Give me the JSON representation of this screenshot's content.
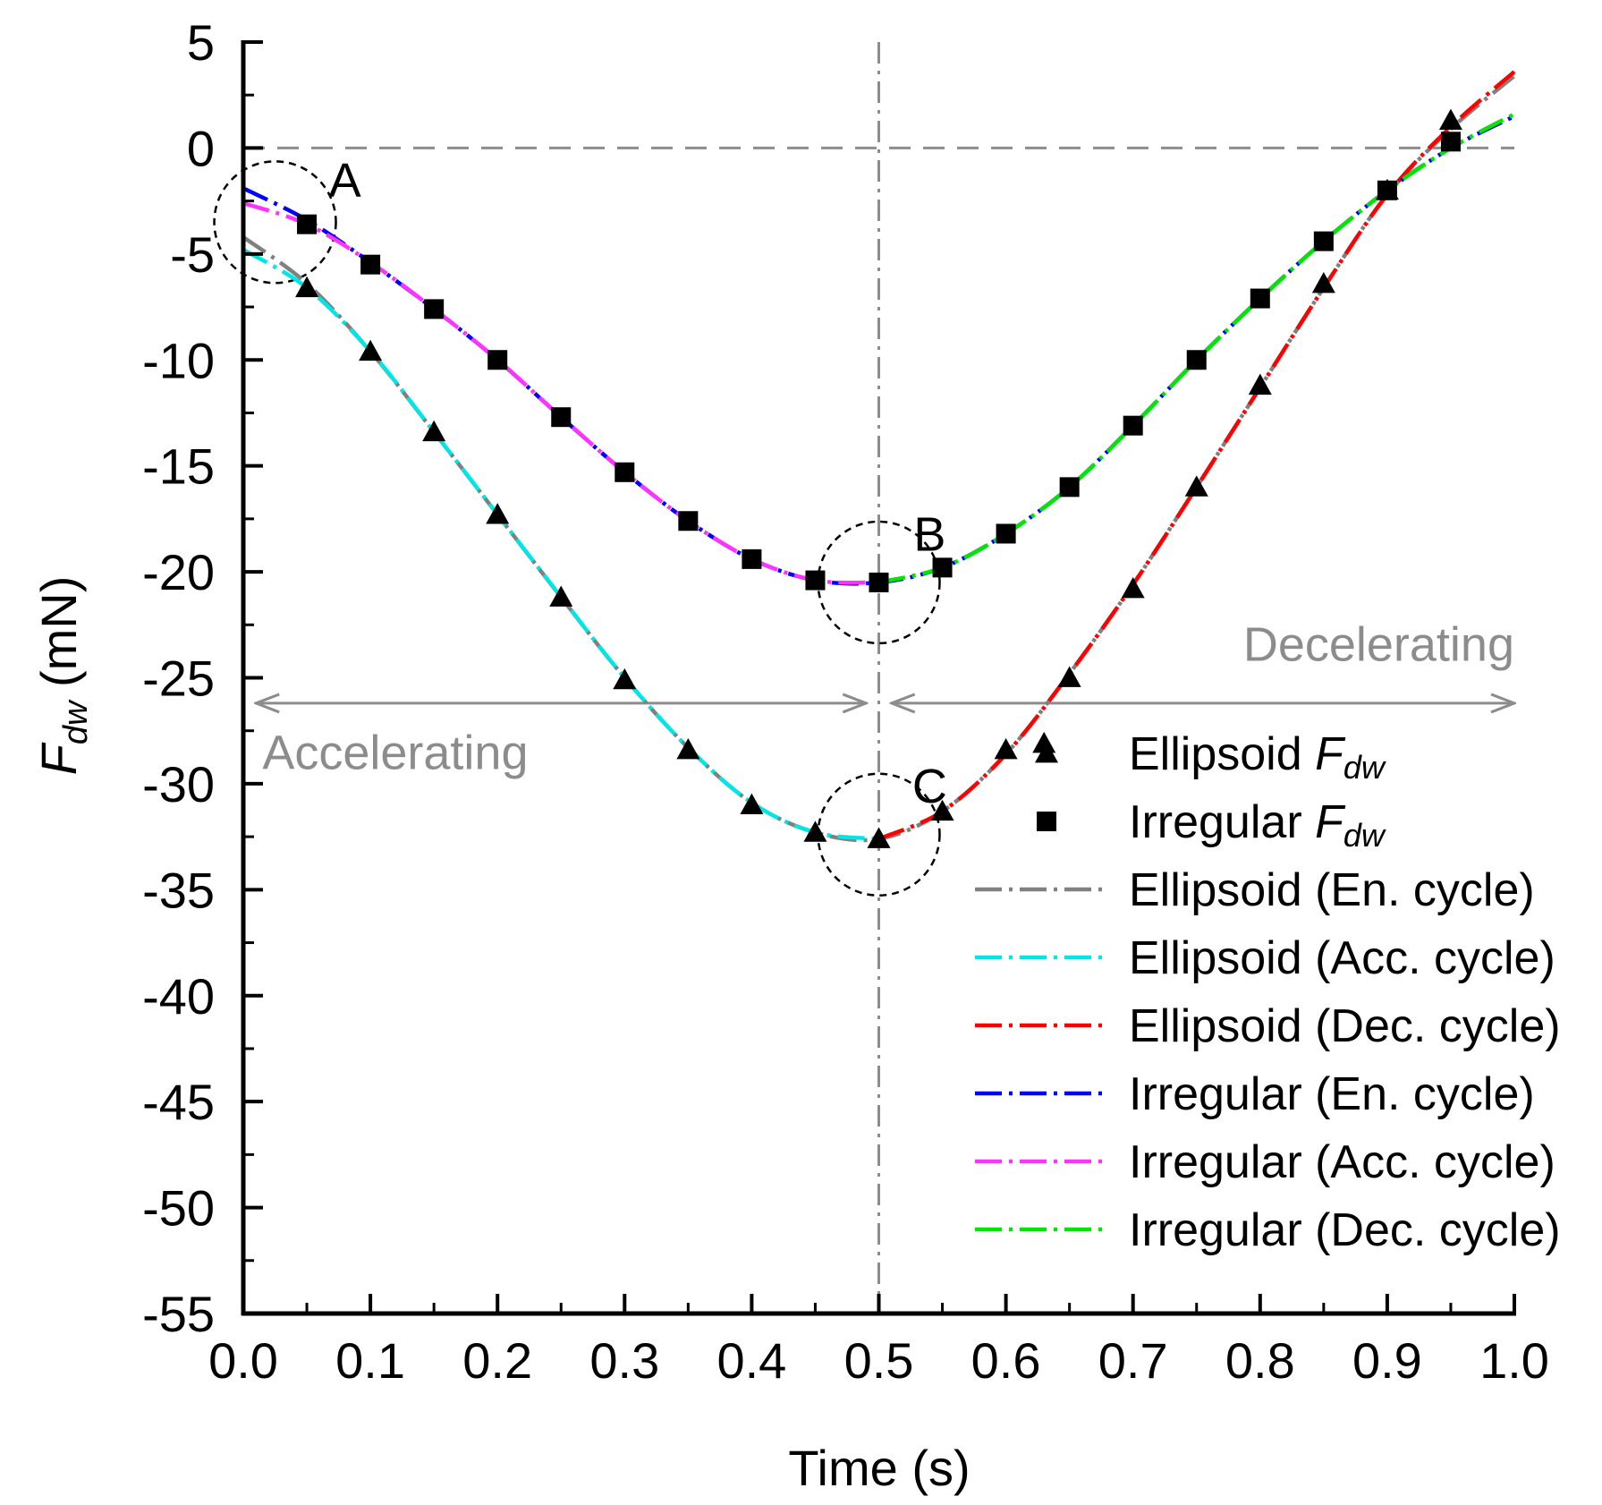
{
  "chart_data": {
    "type": "line",
    "xlabel": "Time (s)",
    "ylabel": {
      "main": "F",
      "sub": "dw",
      "unit": " (mN)"
    },
    "xlim": [
      0,
      1
    ],
    "ylim": [
      -55,
      5
    ],
    "x_ticks": [
      "0.0",
      "0.1",
      "0.2",
      "0.3",
      "0.4",
      "0.5",
      "0.6",
      "0.7",
      "0.8",
      "0.9",
      "1.0"
    ],
    "y_ticks": [
      "5",
      "0",
      "-5",
      "-10",
      "-15",
      "-20",
      "-25",
      "-30",
      "-35",
      "-40",
      "-45",
      "-50",
      "-55"
    ],
    "grid": false,
    "legend_position": "bottom-right",
    "annotations": {
      "accelerating": "Accelerating",
      "decelerating": "Decelerating",
      "circle_a": "A",
      "circle_b": "B",
      "circle_c": "C"
    },
    "marker_series": [
      {
        "name": "Ellipsoid F_dw",
        "label_main": "Ellipsoid ",
        "label_f": "F",
        "label_sub": "dw",
        "marker": "triangle",
        "points": [
          [
            0.05,
            -6.6
          ],
          [
            0.1,
            -9.6
          ],
          [
            0.15,
            -13.4
          ],
          [
            0.2,
            -17.3
          ],
          [
            0.25,
            -21.2
          ],
          [
            0.3,
            -25.1
          ],
          [
            0.35,
            -28.4
          ],
          [
            0.4,
            -31.0
          ],
          [
            0.45,
            -32.3
          ],
          [
            0.5,
            -32.6
          ],
          [
            0.55,
            -31.3
          ],
          [
            0.6,
            -28.4
          ],
          [
            0.63,
            -28.1
          ],
          [
            0.65,
            -25.0
          ],
          [
            0.7,
            -20.8
          ],
          [
            0.75,
            -16.0
          ],
          [
            0.8,
            -11.2
          ],
          [
            0.85,
            -6.4
          ],
          [
            0.9,
            -2.0
          ],
          [
            0.95,
            1.3
          ]
        ]
      },
      {
        "name": "Irregular F_dw",
        "label_main": "Irregular ",
        "label_f": "F",
        "label_sub": "dw",
        "marker": "square",
        "points": [
          [
            0.05,
            -3.6
          ],
          [
            0.1,
            -5.5
          ],
          [
            0.15,
            -7.6
          ],
          [
            0.2,
            -10.0
          ],
          [
            0.25,
            -12.7
          ],
          [
            0.3,
            -15.3
          ],
          [
            0.35,
            -17.6
          ],
          [
            0.4,
            -19.4
          ],
          [
            0.45,
            -20.4
          ],
          [
            0.5,
            -20.5
          ],
          [
            0.55,
            -19.8
          ],
          [
            0.6,
            -18.2
          ],
          [
            0.65,
            -16.0
          ],
          [
            0.7,
            -13.1
          ],
          [
            0.75,
            -10.0
          ],
          [
            0.8,
            -7.1
          ],
          [
            0.85,
            -4.4
          ],
          [
            0.9,
            -2.0
          ],
          [
            0.95,
            0.3
          ]
        ]
      }
    ],
    "series": [
      {
        "name": "Ellipsoid (En. cycle)",
        "color": "#808080",
        "points": [
          [
            0,
            -4.2
          ],
          [
            0.05,
            -6.4
          ],
          [
            0.1,
            -9.6
          ],
          [
            0.15,
            -13.4
          ],
          [
            0.2,
            -17.3
          ],
          [
            0.25,
            -21.2
          ],
          [
            0.3,
            -25.0
          ],
          [
            0.35,
            -28.3
          ],
          [
            0.4,
            -30.9
          ],
          [
            0.45,
            -32.3
          ],
          [
            0.5,
            -32.6
          ],
          [
            0.55,
            -31.3
          ],
          [
            0.6,
            -28.6
          ],
          [
            0.65,
            -24.8
          ],
          [
            0.7,
            -20.6
          ],
          [
            0.75,
            -16.0
          ],
          [
            0.8,
            -11.3
          ],
          [
            0.85,
            -6.6
          ],
          [
            0.9,
            -2.2
          ],
          [
            0.95,
            0.9
          ],
          [
            1.0,
            3.4
          ]
        ]
      },
      {
        "name": "Ellipsoid (Acc. cycle)",
        "color": "#00e5e5",
        "points": [
          [
            0,
            -4.8
          ],
          [
            0.05,
            -6.6
          ],
          [
            0.1,
            -9.6
          ],
          [
            0.15,
            -13.4
          ],
          [
            0.2,
            -17.3
          ],
          [
            0.25,
            -21.2
          ],
          [
            0.3,
            -25.0
          ],
          [
            0.35,
            -28.3
          ],
          [
            0.4,
            -30.9
          ],
          [
            0.45,
            -32.3
          ],
          [
            0.5,
            -32.6
          ]
        ]
      },
      {
        "name": "Ellipsoid (Dec. cycle)",
        "color": "#ff0000",
        "points": [
          [
            0.5,
            -32.6
          ],
          [
            0.55,
            -31.3
          ],
          [
            0.6,
            -28.6
          ],
          [
            0.65,
            -24.8
          ],
          [
            0.7,
            -20.6
          ],
          [
            0.75,
            -16.0
          ],
          [
            0.8,
            -11.3
          ],
          [
            0.85,
            -6.6
          ],
          [
            0.9,
            -2.2
          ],
          [
            0.95,
            1.0
          ],
          [
            1.0,
            3.6
          ]
        ]
      },
      {
        "name": "Irregular (En. cycle)",
        "color": "#0000ff",
        "points": [
          [
            0,
            -1.9
          ],
          [
            0.05,
            -3.4
          ],
          [
            0.1,
            -5.4
          ],
          [
            0.15,
            -7.6
          ],
          [
            0.2,
            -10.0
          ],
          [
            0.25,
            -12.7
          ],
          [
            0.3,
            -15.3
          ],
          [
            0.35,
            -17.6
          ],
          [
            0.4,
            -19.4
          ],
          [
            0.45,
            -20.4
          ],
          [
            0.5,
            -20.5
          ],
          [
            0.55,
            -19.8
          ],
          [
            0.6,
            -18.2
          ],
          [
            0.65,
            -16.0
          ],
          [
            0.7,
            -13.1
          ],
          [
            0.75,
            -10.0
          ],
          [
            0.8,
            -7.1
          ],
          [
            0.85,
            -4.4
          ],
          [
            0.9,
            -2.0
          ],
          [
            0.95,
            0.0
          ],
          [
            1.0,
            1.5
          ]
        ]
      },
      {
        "name": "Irregular (Acc. cycle)",
        "color": "#ff33ff",
        "points": [
          [
            0,
            -2.6
          ],
          [
            0.05,
            -3.6
          ],
          [
            0.1,
            -5.4
          ],
          [
            0.15,
            -7.6
          ],
          [
            0.2,
            -10.0
          ],
          [
            0.25,
            -12.7
          ],
          [
            0.3,
            -15.3
          ],
          [
            0.35,
            -17.6
          ],
          [
            0.4,
            -19.4
          ],
          [
            0.45,
            -20.4
          ],
          [
            0.5,
            -20.5
          ]
        ]
      },
      {
        "name": "Irregular (Dec. cycle)",
        "color": "#00e600",
        "points": [
          [
            0.5,
            -20.5
          ],
          [
            0.55,
            -19.8
          ],
          [
            0.6,
            -18.2
          ],
          [
            0.65,
            -16.0
          ],
          [
            0.7,
            -13.1
          ],
          [
            0.75,
            -10.0
          ],
          [
            0.8,
            -7.1
          ],
          [
            0.85,
            -4.4
          ],
          [
            0.9,
            -2.0
          ],
          [
            0.95,
            0.0
          ],
          [
            1.0,
            1.6
          ]
        ]
      }
    ]
  }
}
